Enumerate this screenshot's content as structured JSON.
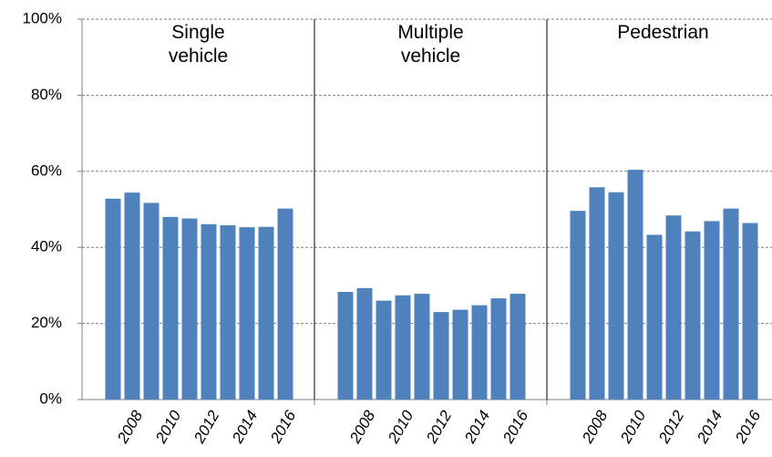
{
  "chart_data": {
    "type": "bar",
    "color": "#4f81bd",
    "categories": [
      null,
      "2008",
      null,
      "2010",
      null,
      "2012",
      null,
      "2014",
      null,
      "2016"
    ],
    "panels": [
      {
        "title": "Single vehicle",
        "values": [
          52.8,
          54.4,
          51.7,
          48.0,
          47.6,
          46.1,
          45.8,
          45.3,
          45.4,
          50.2
        ]
      },
      {
        "title": "Multiple vehicle",
        "values": [
          28.3,
          29.3,
          26.0,
          27.4,
          27.8,
          23.0,
          23.6,
          24.8,
          26.6,
          27.8
        ]
      },
      {
        "title": "Pedestrian",
        "values": [
          49.6,
          55.8,
          54.5,
          60.4,
          43.3,
          48.4,
          44.2,
          46.9,
          50.2,
          46.4
        ]
      }
    ],
    "ylim": [
      0,
      100
    ],
    "yticks": [
      {
        "value": 0,
        "label": "0%"
      },
      {
        "value": 20,
        "label": "20%"
      },
      {
        "value": 40,
        "label": "40%"
      },
      {
        "value": 60,
        "label": "60%"
      },
      {
        "value": 80,
        "label": "80%"
      },
      {
        "value": 100,
        "label": "100%"
      }
    ],
    "grid": true
  }
}
